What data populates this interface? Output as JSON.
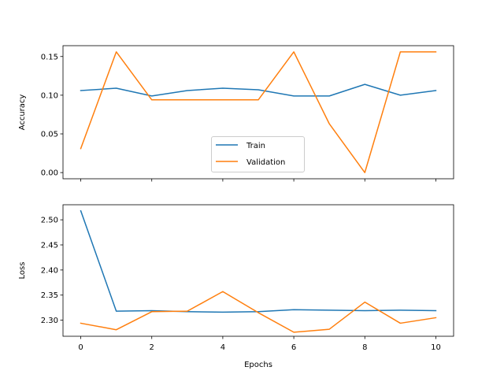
{
  "colors": {
    "train": "#1f77b4",
    "validation": "#ff7f0e",
    "axes": "#000000",
    "legend_border": "#cccccc"
  },
  "chart_data": [
    {
      "type": "line",
      "ylabel": "Accuracy",
      "xlabel": "",
      "xlim": [
        -0.5,
        10.5
      ],
      "ylim": [
        -0.008,
        0.164
      ],
      "xticks": [
        0,
        2,
        4,
        6,
        8,
        10
      ],
      "yticks": [
        0.0,
        0.05,
        0.1,
        0.15
      ],
      "ytick_labels": [
        "0.00",
        "0.05",
        "0.10",
        "0.15"
      ],
      "show_xtick_labels": false,
      "grid": false,
      "legend": "lower-center",
      "x": [
        0,
        1,
        2,
        3,
        4,
        5,
        6,
        7,
        8,
        9,
        10
      ],
      "series": [
        {
          "name": "Train",
          "color_key": "train",
          "values": [
            0.106,
            0.109,
            0.099,
            0.106,
            0.109,
            0.107,
            0.099,
            0.099,
            0.114,
            0.1,
            0.106
          ]
        },
        {
          "name": "Validation",
          "color_key": "validation",
          "values": [
            0.031,
            0.156,
            0.094,
            0.094,
            0.094,
            0.094,
            0.156,
            0.063,
            0.0,
            0.156,
            0.156
          ]
        }
      ]
    },
    {
      "type": "line",
      "ylabel": "Loss",
      "xlabel": "Epochs",
      "xlim": [
        -0.5,
        10.5
      ],
      "ylim": [
        2.268,
        2.53
      ],
      "xticks": [
        0,
        2,
        4,
        6,
        8,
        10
      ],
      "yticks": [
        2.3,
        2.35,
        2.4,
        2.45,
        2.5
      ],
      "ytick_labels": [
        "2.30",
        "2.35",
        "2.40",
        "2.45",
        "2.50"
      ],
      "show_xtick_labels": true,
      "xtick_labels": [
        "0",
        "2",
        "4",
        "6",
        "8",
        "10"
      ],
      "grid": false,
      "x": [
        0,
        1,
        2,
        3,
        4,
        5,
        6,
        7,
        8,
        9,
        10
      ],
      "series": [
        {
          "name": "Train",
          "color_key": "train",
          "values": [
            2.518,
            2.318,
            2.319,
            2.317,
            2.316,
            2.317,
            2.321,
            2.32,
            2.319,
            2.32,
            2.319
          ]
        },
        {
          "name": "Validation",
          "color_key": "validation",
          "values": [
            2.294,
            2.281,
            2.317,
            2.318,
            2.357,
            2.315,
            2.276,
            2.282,
            2.336,
            2.294,
            2.305
          ]
        }
      ]
    }
  ]
}
